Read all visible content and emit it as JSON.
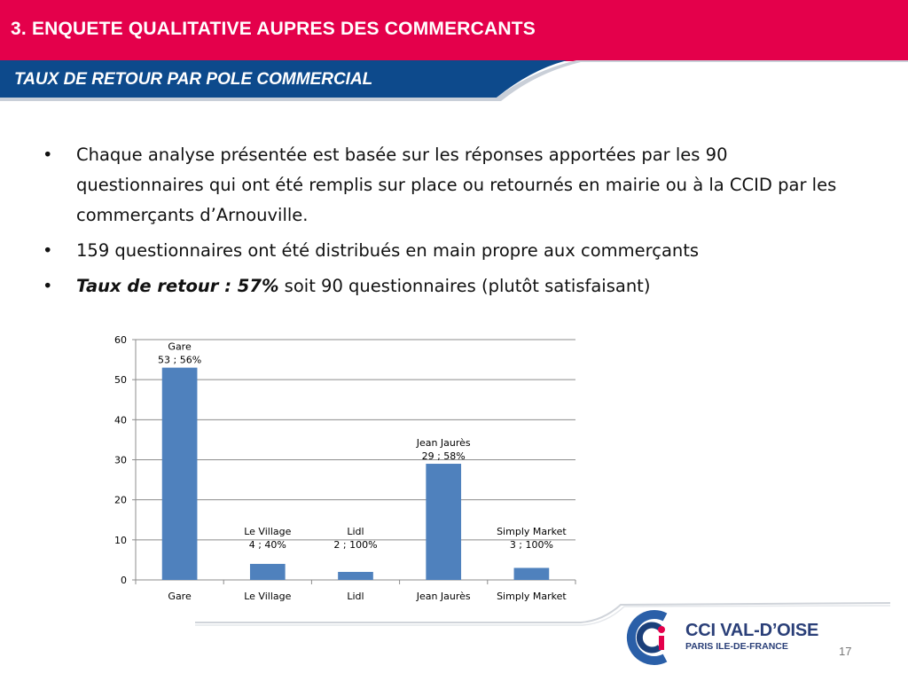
{
  "header": {
    "title": "3. ENQUETE QUALITATIVE AUPRES DES COMMERCANTS"
  },
  "section": {
    "subtitle": "TAUX DE RETOUR PAR POLE COMMERCIAL"
  },
  "bullets": [
    {
      "bold_italic": "",
      "text": "Chaque analyse présentée est basée sur les réponses apportées par les 90 questionnaires qui ont été remplis sur place ou retournés en mairie ou à la CCID par les commerçants d’Arnouville."
    },
    {
      "bold_italic": "",
      "text": "159 questionnaires ont été distribués en main propre aux commerçants"
    },
    {
      "bold_italic": "Taux de retour : 57%",
      "text": " soit 90 questionnaires (plutôt satisfaisant)"
    }
  ],
  "bullet_glyph": "•",
  "chart_data": {
    "type": "bar",
    "categories": [
      "Gare",
      "Le Village",
      "Lidl",
      "Jean Jaurès",
      "Simply Market"
    ],
    "values": [
      53,
      4,
      2,
      29,
      3
    ],
    "data_labels": [
      [
        "Gare",
        "53 ; 56%"
      ],
      [
        "Le Village",
        "4 ; 40%"
      ],
      [
        "Lidl",
        "2 ; 100%"
      ],
      [
        "Jean Jaurès",
        "29  ; 58%"
      ],
      [
        "Simply Market",
        "3 ; 100%"
      ]
    ],
    "yticks": [
      0,
      10,
      20,
      30,
      40,
      50,
      60
    ],
    "ylim": [
      0,
      60
    ],
    "grid": true,
    "bar_color": "#4f81bd"
  },
  "logo": {
    "name": "CCI VAL-D’OISE",
    "subtitle": "PARIS ILE-DE-FRANCE"
  },
  "page_number": "17",
  "colors": {
    "header": "#e4004b",
    "subbar": "#0d4a8c",
    "logo_blue": "#2a3f78",
    "logo_red": "#e4004b"
  }
}
